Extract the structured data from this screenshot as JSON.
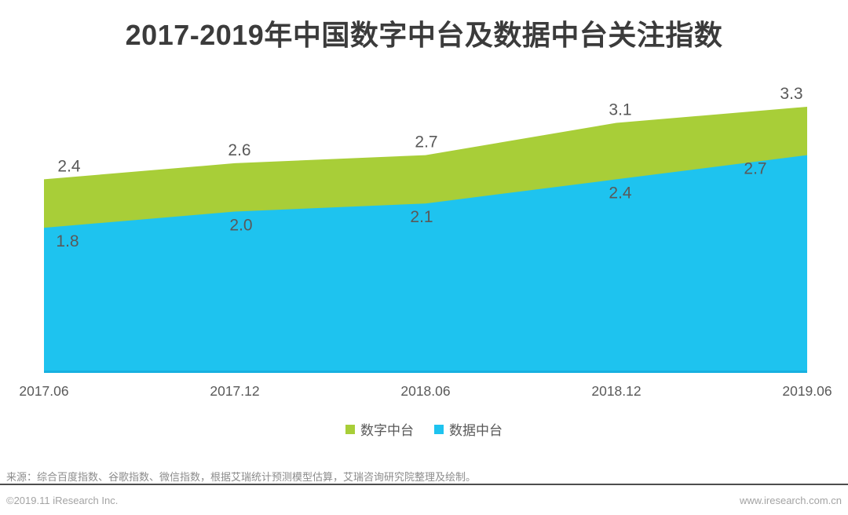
{
  "header": {
    "title": "2017-2019年中国数字中台及数据中台关注指数"
  },
  "chart_data": {
    "type": "area",
    "title": "2017-2019年中国数字中台及数据中台关注指数",
    "x": [
      "2017.06",
      "2017.12",
      "2018.06",
      "2018.12",
      "2019.06"
    ],
    "series": [
      {
        "name": "数字中台",
        "color": "#a8ce38",
        "values": [
          2.4,
          2.6,
          2.7,
          3.1,
          3.3
        ]
      },
      {
        "name": "数据中台",
        "color": "#1ec3ef",
        "values": [
          1.8,
          2.0,
          2.1,
          2.4,
          2.7
        ]
      }
    ],
    "stacked": false,
    "ylim": [
      0,
      3.65
    ],
    "grid": false,
    "value_labels": true,
    "legend_position": "bottom",
    "label_color": "#595959",
    "axis_label_color": "#595959",
    "baseline_color": "#17b0e0"
  },
  "source": {
    "text": "来源：综合百度指数、谷歌指数、微信指数，根据艾瑞统计预测模型估算，艾瑞咨询研究院整理及绘制。"
  },
  "footer": {
    "copyright": "©2019.11 iResearch Inc.",
    "website": "www.iresearch.com.cn"
  }
}
